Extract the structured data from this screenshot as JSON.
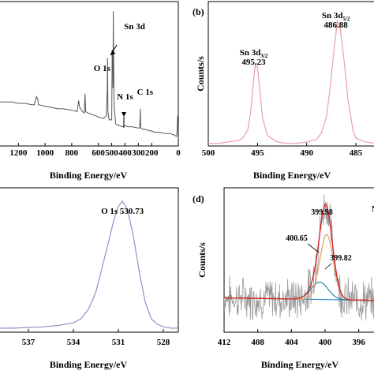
{
  "chart_data": [
    {
      "panel": "",
      "type": "line",
      "xlabel": "Binding Energy/eV",
      "ylabel": "",
      "xlim": [
        1350,
        0
      ],
      "reversed_x": true,
      "x_ticks": [
        "1200",
        "1000",
        "800",
        "600",
        "500",
        "400",
        "300",
        "200",
        "0"
      ],
      "annotations": [
        {
          "text": "Sn 3d",
          "x": 490
        },
        {
          "text": "O 1s",
          "x": 531
        },
        {
          "text": "N 1s",
          "x": 400
        },
        {
          "text": "C 1s",
          "x": 285
        }
      ],
      "series": [
        {
          "color": "#555555",
          "x": [
            1350,
            1250,
            1200,
            1150,
            1100,
            1080,
            1070,
            1065,
            1055,
            1050,
            1000,
            950,
            900,
            860,
            800,
            760,
            752,
            748,
            740,
            720,
            705,
            700,
            695,
            680,
            650,
            620,
            600,
            560,
            540,
            533,
            531,
            528,
            520,
            500,
            496,
            494,
            492,
            490,
            488,
            486,
            484,
            482,
            470,
            450,
            420,
            400,
            380,
            350,
            300,
            290,
            287,
            285,
            283,
            280,
            260,
            240,
            220,
            200,
            180,
            140,
            100,
            60,
            30,
            15,
            10,
            5,
            0
          ],
          "y": [
            62,
            62,
            61,
            61,
            60,
            60,
            64,
            66,
            64,
            60,
            59,
            58,
            57,
            57,
            56,
            55,
            60,
            63,
            58,
            55,
            54,
            68,
            55,
            54,
            53,
            52,
            51,
            50,
            52,
            72,
            94,
            55,
            49,
            49,
            100,
            86,
            96,
            72,
            128,
            100,
            75,
            60,
            46,
            45,
            44,
            45,
            44,
            44,
            43,
            43,
            50,
            57,
            45,
            43,
            42,
            42,
            41,
            41,
            40,
            40,
            39,
            39,
            38,
            37,
            39,
            52,
            52
          ]
        }
      ]
    },
    {
      "panel": "(b)",
      "type": "line",
      "xlabel": "Binding Energy/eV",
      "ylabel": "Counts/s",
      "xlim": [
        500,
        483
      ],
      "reversed_x": true,
      "x_ticks": [
        "500",
        "495",
        "490",
        "485"
      ],
      "annotations": [
        {
          "text": "Sn 3d3/2",
          "sub": "3/2",
          "value": "495.23",
          "x": 495.23
        },
        {
          "text": "Sn 3d5/2",
          "sub": "5/2",
          "value": "486.88",
          "x": 486.88
        }
      ],
      "series": [
        {
          "color": "#e8a0a8",
          "x": [
            500,
            499,
            498,
            497,
            496.5,
            496,
            495.7,
            495.5,
            495.23,
            495,
            494.8,
            494.5,
            494,
            493,
            492,
            491,
            490,
            489,
            488.5,
            488,
            487.6,
            487.2,
            486.88,
            486.6,
            486.2,
            485.8,
            485.3,
            485,
            484,
            483
          ],
          "y": [
            2,
            2,
            3,
            4,
            6,
            12,
            25,
            42,
            62,
            60,
            45,
            22,
            8,
            3,
            2,
            2,
            3,
            5,
            10,
            22,
            45,
            75,
            95,
            90,
            65,
            35,
            12,
            6,
            3,
            2
          ]
        }
      ]
    },
    {
      "panel": "",
      "type": "line",
      "xlabel": "Binding Energy/eV",
      "ylabel": "",
      "xlim": [
        539,
        527
      ],
      "reversed_x": true,
      "x_ticks": [
        "537",
        "534",
        "531",
        "528"
      ],
      "annotations": [
        {
          "text": "O 1s  530.73",
          "x": 530.73
        }
      ],
      "series": [
        {
          "color": "#8a94c8",
          "x": [
            539,
            538,
            537,
            536,
            535,
            534,
            533.5,
            533,
            532.5,
            532,
            531.6,
            531.3,
            531,
            530.73,
            530.4,
            530,
            529.6,
            529.2,
            528.8,
            528.4,
            528,
            527.5,
            527
          ],
          "y": [
            3,
            3,
            3.5,
            4,
            5,
            7,
            10,
            17,
            30,
            52,
            70,
            84,
            94,
            98,
            92,
            72,
            45,
            22,
            10,
            6,
            4,
            3,
            3
          ]
        }
      ]
    },
    {
      "panel": "(d)",
      "type": "line",
      "xlabel": "Binding Energy/eV",
      "ylabel": "Counts/s",
      "xlim": [
        412,
        394
      ],
      "reversed_x": true,
      "x_ticks": [
        "412",
        "408",
        "404",
        "400",
        "396"
      ],
      "annotations": [
        {
          "text": "399.98",
          "x": 399.98
        },
        {
          "text": "400.65",
          "x": 400.65
        },
        {
          "text": "399.82",
          "x": 399.82
        },
        {
          "text": "N",
          "x": 394
        }
      ],
      "series": [
        {
          "role": "raw",
          "color": "#9a9a9a"
        },
        {
          "role": "baseline",
          "color": "#3a8fd0"
        },
        {
          "role": "fit-envelope",
          "color": "#d22a2a",
          "center": 399.98
        },
        {
          "role": "component-400.65",
          "color": "#1e8a9c",
          "center": 400.65
        },
        {
          "role": "component-399.82",
          "color": "#e0a060",
          "center": 399.82
        }
      ]
    }
  ]
}
